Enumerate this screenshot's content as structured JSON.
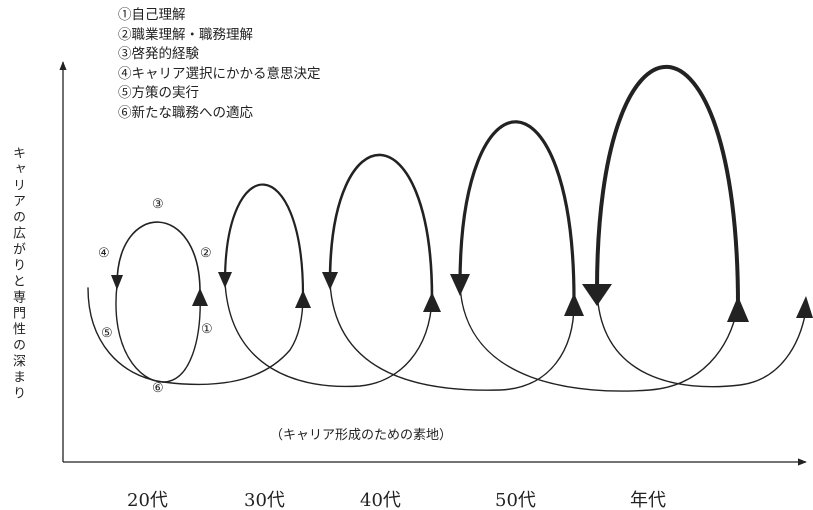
{
  "legend": [
    "①自己理解",
    "②職業理解・職務理解",
    "③啓発的経験",
    "④キャリア選択にかかる意思決定",
    "⑤方策の実行",
    "⑥新たな職務への適応"
  ],
  "y_axis_label": "キャリアの広がりと専門性の深まり",
  "base_note": "（キャリア形成のための素地）",
  "markers": {
    "m1": "①",
    "m2": "②",
    "m3": "③",
    "m4": "④",
    "m5": "⑤",
    "m6": "⑥"
  },
  "x_ticks": [
    "20代",
    "30代",
    "40代",
    "50代",
    "年代"
  ],
  "colors": {
    "ink": "#222222",
    "background": "#ffffff"
  }
}
